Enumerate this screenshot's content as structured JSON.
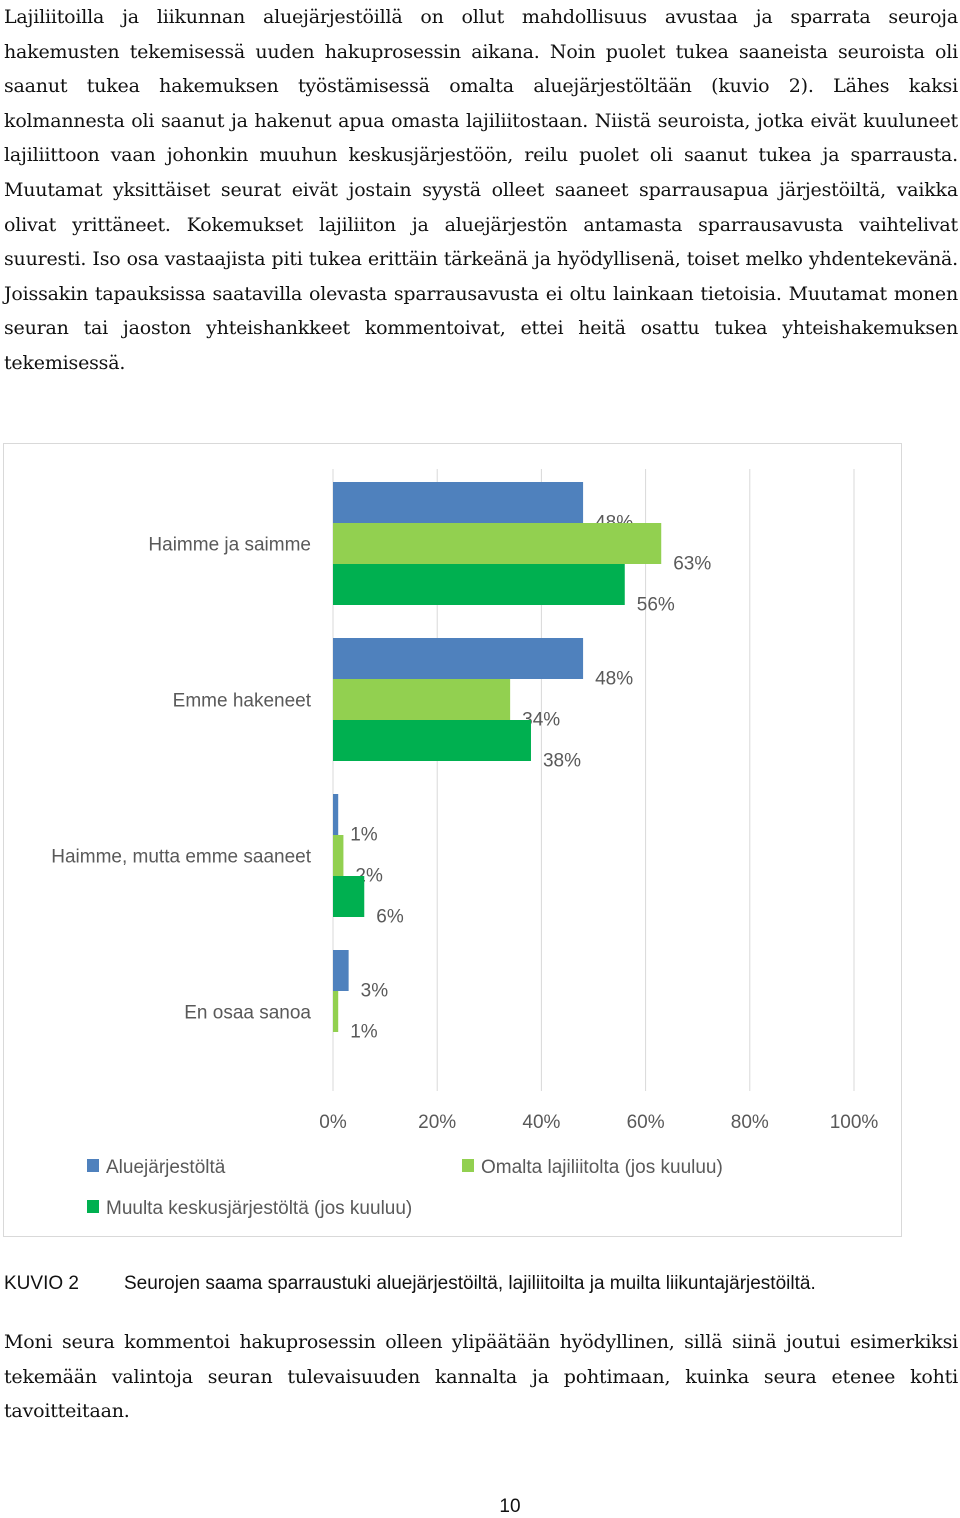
{
  "document": {
    "paragraph1": "Lajiliitoilla ja liikunnan aluejärjestöillä on ollut mahdollisuus avustaa ja sparrata seuroja hakemusten tekemisessä uuden hakuprosessin aikana. Noin puolet tukea saaneista seuroista oli saanut tukea hakemuksen työstämisessä omalta aluejärjestöltään (kuvio 2). Lähes kaksi kolmannesta oli saanut ja hakenut apua omasta lajiliitostaan. Niistä seuroista, jotka eivät kuuluneet lajiliittoon vaan johonkin muuhun keskusjärjestöön, reilu puolet oli saanut tukea ja sparrausta. Muutamat yksittäiset seurat eivät jostain syystä olleet saaneet sparrausapua järjestöiltä, vaikka olivat yrittäneet. Kokemukset lajiliiton ja aluejärjestön antamasta sparrausavusta vaihtelivat suuresti. Iso osa vastaajista piti tukea erittäin tärkeänä ja hyödyllisenä, toiset melko yhdentekevänä. Joissakin tapauksissa saatavilla olevasta sparrausavusta ei oltu lainkaan tietoisia. Muutamat monen seuran tai jaoston yhteishankkeet kommentoivat, ettei heitä osattu tukea yhteishakemuksen tekemisessä.",
    "caption_label": "KUVIO 2",
    "caption_text": "Seurojen saama sparraustuki aluejärjestöiltä, lajiliitoilta ja muilta liikuntajärjestöiltä.",
    "paragraph2": "Moni seura kommentoi hakuprosessin olleen ylipäätään hyödyllinen, sillä siinä joutui esimerkiksi tekemään valintoja seuran tulevaisuuden kannalta ja pohtimaan, kuinka seura etenee kohti tavoitteitaan.",
    "page_number": "10"
  },
  "chart_data": {
    "type": "bar",
    "orientation": "horizontal",
    "categories": [
      "Haimme ja saimme",
      "Emme hakeneet",
      "Haimme, mutta emme saaneet",
      "En osaa sanoa"
    ],
    "series": [
      {
        "name": "Aluejärjestöltä",
        "color": "#4f81bd",
        "values": [
          48,
          48,
          1,
          3
        ],
        "labels": [
          "48%",
          "48%",
          "1%",
          "3%"
        ]
      },
      {
        "name": "Omalta lajiliitolta (jos kuuluu)",
        "color": "#92d050",
        "values": [
          63,
          34,
          2,
          1
        ],
        "labels": [
          "63%",
          "34%",
          "2%",
          "1%"
        ]
      },
      {
        "name": "Muulta keskusjärjestöltä (jos kuuluu)",
        "color": "#00b050",
        "values": [
          56,
          38,
          6,
          null
        ],
        "labels": [
          "56%",
          "38%",
          "6%",
          null
        ]
      }
    ],
    "x_ticks": [
      "0%",
      "20%",
      "40%",
      "60%",
      "80%",
      "100%"
    ],
    "xlim": [
      0,
      100
    ],
    "grid": true,
    "legend_position": "bottom"
  }
}
